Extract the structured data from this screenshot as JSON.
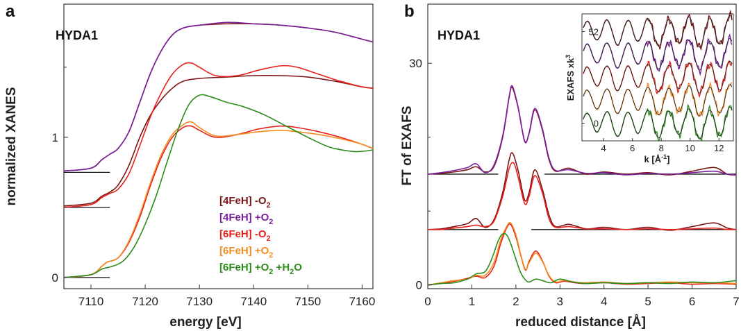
{
  "chart_data": [
    {
      "panel": "a",
      "type": "line",
      "sample": "HYDA1",
      "xlabel": "energy [eV]",
      "ylabel": "normalized XANES",
      "xlim": [
        7105,
        7162
      ],
      "ylim": [
        -0.08,
        1.95
      ],
      "x_ticks": [
        7110,
        7120,
        7130,
        7140,
        7150,
        7160
      ],
      "y_ticks": [
        0,
        1
      ],
      "grid": false,
      "legend_position": "lower-right",
      "legend": [
        {
          "label": "[4FeH] -O",
          "sub": "2",
          "tail": "",
          "color": "#7b1414"
        },
        {
          "label": "[4FeH] +O",
          "sub": "2",
          "tail": "",
          "color": "#7a1f9e"
        },
        {
          "label": "[6FeH] -O",
          "sub": "2",
          "tail": "",
          "color": "#e8201a"
        },
        {
          "label": "[6FeH] +O",
          "sub": "2",
          "tail": "",
          "color": "#f28c1e"
        },
        {
          "label": "[6FeH] +O",
          "sub": "2",
          "tail": " +H",
          "sub2": "2",
          "tail2": "O",
          "color": "#2b8c1a"
        }
      ],
      "baselines": [
        {
          "y": 0.75,
          "x": [
            7105,
            7113.5
          ]
        },
        {
          "y": 0.5,
          "x": [
            7105,
            7113.5
          ]
        },
        {
          "y": 0.0,
          "x": [
            7105,
            7113.5
          ]
        }
      ],
      "series": [
        {
          "color": "#7b1414",
          "x": [
            7105,
            7110,
            7112,
            7113.5,
            7115,
            7117,
            7119,
            7121,
            7123,
            7125,
            7127,
            7130,
            7135,
            7140,
            7145,
            7150,
            7155,
            7160,
            7162
          ],
          "y": [
            0.76,
            0.78,
            0.84,
            0.88,
            0.92,
            1.04,
            1.25,
            1.46,
            1.62,
            1.73,
            1.78,
            1.8,
            1.81,
            1.81,
            1.8,
            1.78,
            1.75,
            1.7,
            1.68
          ]
        },
        {
          "color": "#7a1f9e",
          "x": [
            7105,
            7110,
            7112,
            7113.5,
            7115,
            7117,
            7119,
            7121,
            7123,
            7125,
            7127,
            7130,
            7135,
            7140,
            7145,
            7150,
            7155,
            7160,
            7162
          ],
          "y": [
            0.76,
            0.78,
            0.84,
            0.88,
            0.92,
            1.04,
            1.25,
            1.46,
            1.62,
            1.73,
            1.78,
            1.8,
            1.82,
            1.81,
            1.8,
            1.78,
            1.75,
            1.7,
            1.68
          ]
        },
        {
          "color": "#7b1414",
          "x": [
            7105,
            7110,
            7112,
            7113.5,
            7115,
            7117,
            7119,
            7121,
            7123,
            7125,
            7127,
            7130,
            7135,
            7140,
            7145,
            7150,
            7155,
            7160,
            7162
          ],
          "y": [
            0.51,
            0.53,
            0.58,
            0.61,
            0.66,
            0.8,
            1.0,
            1.16,
            1.27,
            1.35,
            1.4,
            1.42,
            1.43,
            1.44,
            1.44,
            1.43,
            1.4,
            1.36,
            1.35
          ]
        },
        {
          "color": "#e8201a",
          "x": [
            7105,
            7110,
            7112,
            7113.5,
            7115,
            7117,
            7119,
            7121,
            7123,
            7125,
            7127,
            7128.5,
            7130,
            7133,
            7137,
            7141,
            7145,
            7148,
            7152,
            7156,
            7160,
            7162
          ],
          "y": [
            0.5,
            0.52,
            0.57,
            0.6,
            0.63,
            0.74,
            0.94,
            1.15,
            1.32,
            1.45,
            1.52,
            1.53,
            1.5,
            1.44,
            1.44,
            1.48,
            1.51,
            1.5,
            1.45,
            1.4,
            1.36,
            1.35
          ]
        },
        {
          "color": "#e8201a",
          "x": [
            7105,
            7110,
            7112,
            7113,
            7115,
            7117,
            7119,
            7121,
            7123,
            7125,
            7127,
            7128.5,
            7130,
            7133,
            7137,
            7141,
            7145,
            7148,
            7152,
            7156,
            7160,
            7162
          ],
          "y": [
            0.0,
            0.02,
            0.08,
            0.11,
            0.14,
            0.25,
            0.43,
            0.66,
            0.86,
            1.0,
            1.07,
            1.08,
            1.05,
            1.0,
            1.02,
            1.06,
            1.08,
            1.07,
            1.04,
            1.0,
            0.95,
            0.92
          ]
        },
        {
          "color": "#f28c1e",
          "x": [
            7105,
            7110,
            7112,
            7113,
            7115,
            7117,
            7119,
            7121,
            7123,
            7125,
            7127,
            7128.5,
            7130,
            7133,
            7137,
            7141,
            7145,
            7148,
            7152,
            7156,
            7160,
            7162
          ],
          "y": [
            0.0,
            0.02,
            0.08,
            0.11,
            0.14,
            0.26,
            0.45,
            0.68,
            0.88,
            1.02,
            1.09,
            1.11,
            1.07,
            1.01,
            1.02,
            1.04,
            1.05,
            1.04,
            1.02,
            0.99,
            0.95,
            0.92
          ]
        },
        {
          "color": "#2b8c1a",
          "x": [
            7105,
            7110,
            7112,
            7114,
            7116,
            7118,
            7120,
            7122,
            7124,
            7126,
            7128,
            7130,
            7132,
            7135,
            7138,
            7142,
            7146,
            7150,
            7154,
            7158,
            7160,
            7162
          ],
          "y": [
            0.0,
            0.02,
            0.06,
            0.08,
            0.12,
            0.22,
            0.38,
            0.58,
            0.82,
            1.05,
            1.23,
            1.3,
            1.29,
            1.25,
            1.22,
            1.16,
            1.08,
            1.0,
            0.93,
            0.9,
            0.9,
            0.91
          ]
        }
      ]
    },
    {
      "panel": "b",
      "type": "line",
      "sample": "HYDA1",
      "xlabel": "reduced distance [Å]",
      "ylabel": "FT of EXAFS",
      "xlim": [
        0,
        7
      ],
      "ylim": [
        -0.5,
        38
      ],
      "x_ticks": [
        0,
        1,
        2,
        3,
        4,
        5,
        6,
        7
      ],
      "y_ticks": [
        0,
        30
      ],
      "grid": false,
      "baselines": [
        {
          "y": 15.0,
          "x": [
            0,
            1.6
          ]
        },
        {
          "y": 15.0,
          "x": [
            2.65,
            7
          ]
        },
        {
          "y": 7.5,
          "x": [
            0,
            1.6
          ]
        },
        {
          "y": 7.5,
          "x": [
            2.35,
            7
          ]
        }
      ],
      "series": [
        {
          "color": "#7b1414",
          "x": [
            0,
            0.3,
            0.6,
            0.9,
            1.1,
            1.3,
            1.5,
            1.7,
            1.85,
            1.92,
            2.05,
            2.2,
            2.3,
            2.43,
            2.6,
            2.75,
            2.9,
            3.2,
            3.6,
            4.0,
            4.5,
            5.0,
            5.5,
            6.0,
            6.5,
            6.8,
            7.0
          ],
          "y": [
            15.0,
            15.1,
            15.3,
            15.6,
            16.0,
            15.3,
            16.0,
            20.0,
            25.5,
            26.7,
            24.0,
            19.5,
            20.5,
            23.7,
            21.0,
            17.0,
            15.4,
            15.8,
            15.0,
            15.3,
            15.0,
            15.2,
            14.9,
            15.4,
            15.9,
            15.0,
            14.9
          ]
        },
        {
          "color": "#7a1f9e",
          "x": [
            0,
            0.3,
            0.6,
            0.9,
            1.1,
            1.3,
            1.5,
            1.7,
            1.85,
            1.92,
            2.05,
            2.2,
            2.3,
            2.43,
            2.6,
            2.75,
            2.9,
            3.2,
            3.6,
            4.0,
            4.5,
            5.0,
            5.5,
            6.0,
            6.5,
            6.8,
            7.0
          ],
          "y": [
            15.0,
            15.2,
            15.5,
            15.9,
            16.4,
            15.2,
            16.2,
            20.2,
            25.6,
            26.9,
            24.1,
            19.4,
            20.6,
            23.9,
            21.2,
            17.2,
            15.5,
            15.6,
            15.1,
            15.2,
            14.9,
            15.1,
            15.0,
            15.2,
            15.4,
            15.0,
            14.9
          ]
        },
        {
          "color": "#7b1414",
          "x": [
            0,
            0.3,
            0.6,
            0.9,
            1.1,
            1.3,
            1.5,
            1.7,
            1.85,
            1.93,
            2.05,
            2.2,
            2.3,
            2.43,
            2.6,
            2.75,
            2.9,
            3.2,
            3.6,
            4.0,
            4.5,
            5.0,
            5.5,
            6.0,
            6.5,
            6.8,
            7.0
          ],
          "y": [
            7.5,
            7.6,
            7.9,
            8.3,
            9.0,
            7.8,
            8.8,
            12.5,
            17.0,
            17.8,
            15.5,
            11.5,
            12.5,
            15.6,
            13.0,
            9.5,
            7.9,
            8.2,
            7.6,
            7.8,
            7.5,
            7.8,
            7.4,
            7.9,
            8.4,
            7.7,
            7.5
          ]
        },
        {
          "color": "#e8201a",
          "x": [
            0,
            0.3,
            0.6,
            0.9,
            1.1,
            1.3,
            1.5,
            1.7,
            1.85,
            1.95,
            2.05,
            2.2,
            2.3,
            2.43,
            2.6,
            2.75,
            2.9,
            3.2,
            3.6,
            4.0,
            4.5,
            5.0,
            5.5,
            6.0,
            6.5,
            6.8,
            7.0
          ],
          "y": [
            7.5,
            7.5,
            7.7,
            7.9,
            8.1,
            7.9,
            8.6,
            12.0,
            15.8,
            16.5,
            14.6,
            11.0,
            12.0,
            14.8,
            12.5,
            9.0,
            7.8,
            7.9,
            7.6,
            7.6,
            7.5,
            7.6,
            7.5,
            7.6,
            7.7,
            7.5,
            7.5
          ]
        },
        {
          "color": "#e8201a",
          "x": [
            0,
            0.3,
            0.6,
            0.9,
            1.1,
            1.3,
            1.5,
            1.65,
            1.78,
            1.88,
            2.0,
            2.12,
            2.22,
            2.3,
            2.45,
            2.6,
            2.75,
            2.9,
            3.1,
            3.5,
            4.0,
            4.5,
            5.0,
            5.5,
            6.0,
            6.5,
            7.0
          ],
          "y": [
            0.0,
            0.2,
            0.5,
            0.9,
            1.2,
            1.0,
            2.5,
            5.5,
            7.6,
            8.2,
            6.5,
            3.8,
            2.0,
            3.2,
            4.6,
            3.3,
            1.2,
            0.3,
            0.5,
            0.2,
            0.3,
            0.1,
            0.2,
            0.3,
            0.1,
            0.2,
            0.1
          ]
        },
        {
          "color": "#f28c1e",
          "x": [
            0,
            0.3,
            0.6,
            0.9,
            1.1,
            1.3,
            1.5,
            1.65,
            1.78,
            1.88,
            2.0,
            2.12,
            2.22,
            2.3,
            2.45,
            2.6,
            2.75,
            2.9,
            3.1,
            3.5,
            4.0,
            4.5,
            5.0,
            5.5,
            6.0,
            6.5,
            7.0
          ],
          "y": [
            0.0,
            0.3,
            0.6,
            0.8,
            1.3,
            1.3,
            3.0,
            6.0,
            7.8,
            8.4,
            6.8,
            3.9,
            2.1,
            3.0,
            4.3,
            3.2,
            1.3,
            0.4,
            0.6,
            0.3,
            0.4,
            0.2,
            0.3,
            0.4,
            0.3,
            0.3,
            0.2
          ]
        },
        {
          "color": "#2b8c1a",
          "x": [
            0,
            0.3,
            0.6,
            0.9,
            1.1,
            1.3,
            1.45,
            1.6,
            1.7,
            1.8,
            1.9,
            2.0,
            2.1,
            2.2,
            2.3,
            2.45,
            2.6,
            2.8,
            3.0,
            3.3,
            3.6,
            4.0,
            4.5,
            5.0,
            5.5,
            6.0,
            6.5,
            7.0
          ],
          "y": [
            0.0,
            0.2,
            0.3,
            0.8,
            1.5,
            1.8,
            3.5,
            6.0,
            6.9,
            6.7,
            5.3,
            3.5,
            1.8,
            0.8,
            0.4,
            0.8,
            0.6,
            0.3,
            0.8,
            0.4,
            0.2,
            0.3,
            0.2,
            0.3,
            0.2,
            0.4,
            0.3,
            0.6
          ]
        }
      ],
      "inset": {
        "xlabel": "k [Å",
        "xlabel_sup": "-1",
        "xlabel_close": "]",
        "ylabel": "EXAFS xk",
        "ylabel_sup": "3",
        "xlim": [
          2.5,
          13
        ],
        "ylim": [
          -10,
          62
        ],
        "x_ticks": [
          4,
          6,
          8,
          10,
          12
        ],
        "y_ticks": [
          0,
          52
        ],
        "offsets": [
          52,
          39,
          26,
          13,
          0
        ],
        "colors": [
          "#7b1414",
          "#7a1f9e",
          "#e8201a",
          "#f28c1e",
          "#2b8c1a"
        ],
        "fit_color": "#222222"
      }
    }
  ],
  "panel_labels": {
    "a": "a",
    "b": "b"
  },
  "sample_labels": {
    "a": "HYDA1",
    "b": "HYDA1"
  }
}
